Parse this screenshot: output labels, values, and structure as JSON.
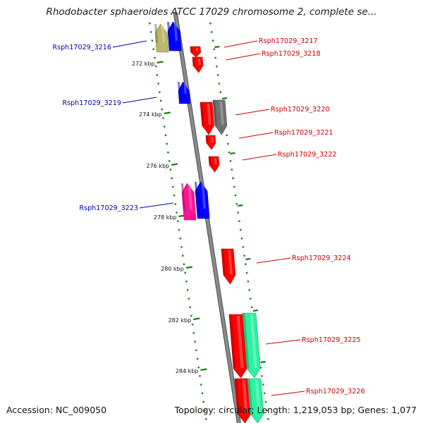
{
  "title": "Rhodobacter sphaeroides ATCC 17029 chromosome 2, complete se...",
  "footer": {
    "accession": "Accession: NC_009050",
    "summary": "Topology: circular; Length: 1,219,053 bp; Genes: 1,077"
  },
  "colors": {
    "background": "#ffffff",
    "backbone": "#8a8a8a",
    "ruler": "#1f7a1f",
    "label_left": "#0000a8",
    "label_right": "#cc0000"
  },
  "scale_labels": [
    "272 kbp",
    "274 kbp",
    "276 kbp",
    "278 kbp",
    "280 kbp",
    "282 kbp",
    "284 kbp"
  ],
  "genes": [
    {
      "name": "Rsph17029_3216",
      "strand": "reverse",
      "color": "#bdb76b"
    },
    {
      "name": "Rsph17029_3216",
      "strand": "reverse",
      "color": "#0000ff"
    },
    {
      "name": "Rsph17029_3217",
      "strand": "forward",
      "color": "#ff0000"
    },
    {
      "name": "Rsph17029_3218",
      "strand": "forward",
      "color": "#ff0000"
    },
    {
      "name": "Rsph17029_3219",
      "strand": "reverse",
      "color": "#0000ff"
    },
    {
      "name": "Rsph17029_3220",
      "strand": "forward",
      "color": "#ff0000"
    },
    {
      "name": "Rsph17029_3220",
      "strand": "forward",
      "color": "#707070"
    },
    {
      "name": "Rsph17029_3221",
      "strand": "forward",
      "color": "#ff0000"
    },
    {
      "name": "Rsph17029_3222",
      "strand": "forward",
      "color": "#ff0000"
    },
    {
      "name": "Rsph17029_3223",
      "strand": "reverse",
      "color": "#ff1493"
    },
    {
      "name": "Rsph17029_3223",
      "strand": "reverse",
      "color": "#0000ff"
    },
    {
      "name": "Rsph17029_3224",
      "strand": "forward",
      "color": "#ff0000"
    },
    {
      "name": "Rsph17029_3225",
      "strand": "forward",
      "color": "#ff0000"
    },
    {
      "name": "Rsph17029_3225",
      "strand": "forward",
      "color": "#2ef0a0"
    },
    {
      "name": "Rsph17029_3226",
      "strand": "forward",
      "color": "#ff0000"
    },
    {
      "name": "Rsph17029_3226",
      "strand": "forward",
      "color": "#2ef0a0"
    }
  ],
  "labels": [
    {
      "text": "Rsph17029_3216",
      "side": "left"
    },
    {
      "text": "Rsph17029_3217",
      "side": "right"
    },
    {
      "text": "Rsph17029_3218",
      "side": "right"
    },
    {
      "text": "Rsph17029_3219",
      "side": "left"
    },
    {
      "text": "Rsph17029_3220",
      "side": "right"
    },
    {
      "text": "Rsph17029_3221",
      "side": "right"
    },
    {
      "text": "Rsph17029_3222",
      "side": "right"
    },
    {
      "text": "Rsph17029_3223",
      "side": "left"
    },
    {
      "text": "Rsph17029_3224",
      "side": "right"
    },
    {
      "text": "Rsph17029_3225",
      "side": "right"
    },
    {
      "text": "Rsph17029_3226",
      "side": "right"
    }
  ]
}
